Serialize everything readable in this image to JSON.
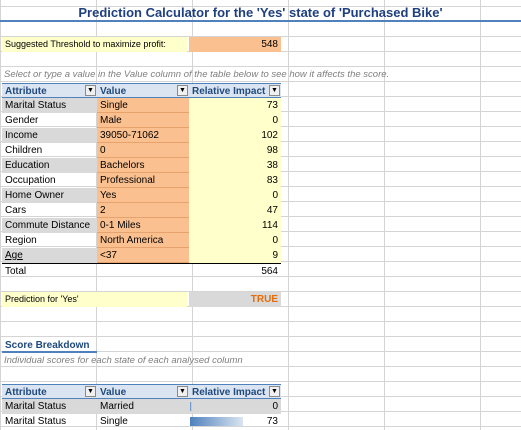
{
  "title": "Prediction Calculator for the 'Yes' state of 'Purchased Bike'",
  "threshold": {
    "label": "Suggested Threshold to maximize profit:",
    "value": "548"
  },
  "instruction": "Select or type a value in the Value column of the table below to see how it affects the score.",
  "table": {
    "headers": {
      "attribute": "Attribute",
      "value": "Value",
      "impact": "Relative Impact"
    },
    "rows": [
      {
        "attribute": "Marital Status",
        "value": "Single",
        "impact": "73"
      },
      {
        "attribute": "Gender",
        "value": "Male",
        "impact": "0"
      },
      {
        "attribute": "Income",
        "value": "39050-71062",
        "impact": "102"
      },
      {
        "attribute": "Children",
        "value": "0",
        "impact": "98"
      },
      {
        "attribute": "Education",
        "value": "Bachelors",
        "impact": "38"
      },
      {
        "attribute": "Occupation",
        "value": "Professional",
        "impact": "83"
      },
      {
        "attribute": "Home Owner",
        "value": "Yes",
        "impact": "0"
      },
      {
        "attribute": "Cars",
        "value": "2",
        "impact": "47"
      },
      {
        "attribute": "Commute Distance",
        "value": "0-1 Miles",
        "impact": "114"
      },
      {
        "attribute": "Region",
        "value": "North America",
        "impact": "0"
      },
      {
        "attribute": "Age",
        "value": "<37",
        "impact": "9"
      }
    ],
    "total_label": "Total",
    "total_value": "564"
  },
  "prediction": {
    "label": "Prediction for 'Yes'",
    "value": "TRUE"
  },
  "breakdown": {
    "title": "Score Breakdown",
    "subtitle": "Individual scores for each state of each analysed column",
    "headers": {
      "attribute": "Attribute",
      "value": "Value",
      "impact": "Relative Impact"
    },
    "rows": [
      {
        "attribute": "Marital Status",
        "value": "Married",
        "impact": "0",
        "bar_fraction": 0.02
      },
      {
        "attribute": "Marital Status",
        "value": "Single",
        "impact": "73",
        "bar_fraction": 0.6
      }
    ]
  },
  "colors": {
    "header_blue": "#1f497d",
    "orange_fill": "#fac090",
    "yellow_fill": "#ffffcc",
    "true_orange": "#e46c0a"
  }
}
